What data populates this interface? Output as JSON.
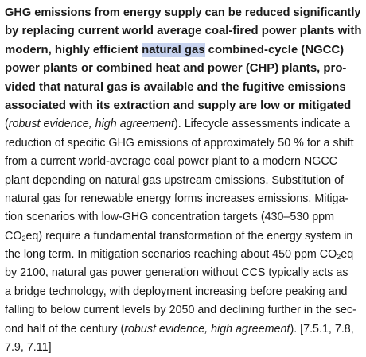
{
  "summary_bold": {
    "l1": "GHG emissions from energy supply can be reduced significantly",
    "l2": "by replacing current world average coal-fired power plants with",
    "l3_pre": "modern, highly efficient ",
    "l3_highlight": "natural gas",
    "l3_post": " combined-cycle (NGCC)",
    "l4": "power plants or combined heat and power (CHP) plants, pro-",
    "l5": "vided that natural gas is available and the fugitive emissions",
    "l6": "associated with its extraction and supply are low or mitigated"
  },
  "body": {
    "l7_open": "(",
    "l7_italic": "robust evidence, high agreement",
    "l7_rest": "). Lifecycle assessments indicate a",
    "l8": "reduction of specific GHG emissions of approximately 50 % for a shift",
    "l9": "from a current world-average coal power plant to a modern NGCC",
    "l10": "plant depending on natural gas upstream emissions. Substitution of",
    "l11": "natural gas for renewable energy forms increases emissions. Mitiga-",
    "l12": "tion scenarios with low-GHG concentration targets (430–530 ppm",
    "l13_co": "CO",
    "l13_sub": "2",
    "l13_rest": "eq) require a fundamental transformation of the energy system in",
    "l14": "the long term. In mitigation scenarios reaching about 450 ppm CO",
    "l14_sub": "2",
    "l14_end": "eq",
    "l15": "by 2100, natural gas power generation without CCS typically acts as",
    "l16": "a bridge technology, with deployment increasing before peaking and",
    "l17": "falling to below current levels by 2050 and declining further in the sec-",
    "l18_pre": "ond half of the century (",
    "l18_italic": "robust evidence, high agreement",
    "l18_post": "). [7.5.1, 7.8,",
    "l19": "7.9, 7.11]"
  }
}
